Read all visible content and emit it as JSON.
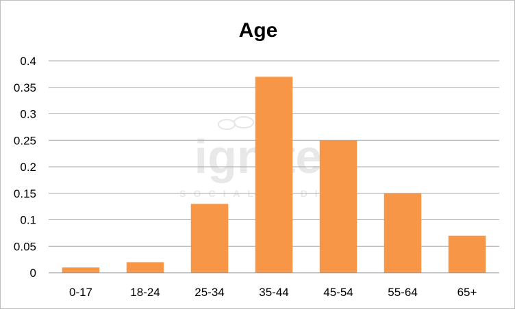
{
  "chart_data": {
    "type": "bar",
    "title": "Age",
    "categories": [
      "0-17",
      "18-24",
      "25-34",
      "35-44",
      "45-54",
      "55-64",
      "65+"
    ],
    "values": [
      0.01,
      0.02,
      0.13,
      0.37,
      0.25,
      0.15,
      0.07
    ],
    "ylim": [
      0,
      0.4
    ],
    "yticks": [
      0,
      0.05,
      0.1,
      0.15,
      0.2,
      0.25,
      0.3,
      0.35,
      0.4
    ],
    "ytick_labels": [
      "0",
      "0.05",
      "0.1",
      "0.15",
      "0.2",
      "0.25",
      "0.3",
      "0.35",
      "0.4"
    ],
    "xlabel": "",
    "ylabel": "",
    "grid": true,
    "legend": "none",
    "bar_color": "#f79646",
    "grid_color": "#a6a6a6"
  },
  "watermark": {
    "logo_text": "ignite",
    "subtitle": "SOCIAL MEDIA",
    "logo_icon": "speech-bubbles-icon"
  }
}
